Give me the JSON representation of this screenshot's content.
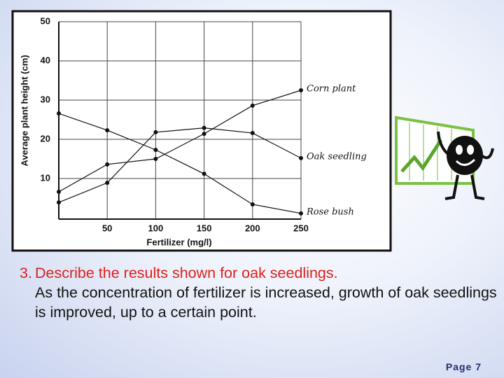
{
  "chart_data": {
    "type": "line",
    "x_label": "Fertilizer (mg/l)",
    "y_label": "Average plant height (cm)",
    "x": [
      0,
      50,
      100,
      150,
      200,
      250
    ],
    "series": [
      {
        "name": "Corn plant",
        "color": "#111111",
        "values": [
          6.6,
          13.6,
          15,
          21.4,
          28.6,
          32.5
        ]
      },
      {
        "name": "Oak seedling",
        "color": "#111111",
        "values": [
          3.9,
          8.9,
          21.8,
          22.9,
          21.6,
          15.2
        ]
      },
      {
        "name": "Rose bush",
        "color": "#111111",
        "values": [
          26.6,
          22.3,
          17.3,
          11.2,
          3.4,
          1.1
        ]
      }
    ],
    "xlim": [
      0,
      250
    ],
    "ylim": [
      0,
      50
    ],
    "xticks": [
      50,
      100,
      150,
      200,
      250
    ],
    "yticks": [
      10,
      20,
      30,
      40,
      50
    ],
    "grid": true
  },
  "slide": {
    "question_number": "3.",
    "question": "Describe the results shown for oak seedlings.",
    "answer": "As the concentration of fertilizer is increased, growth of oak seedlings is improved, up to a certain point.",
    "page": "Page 7"
  }
}
